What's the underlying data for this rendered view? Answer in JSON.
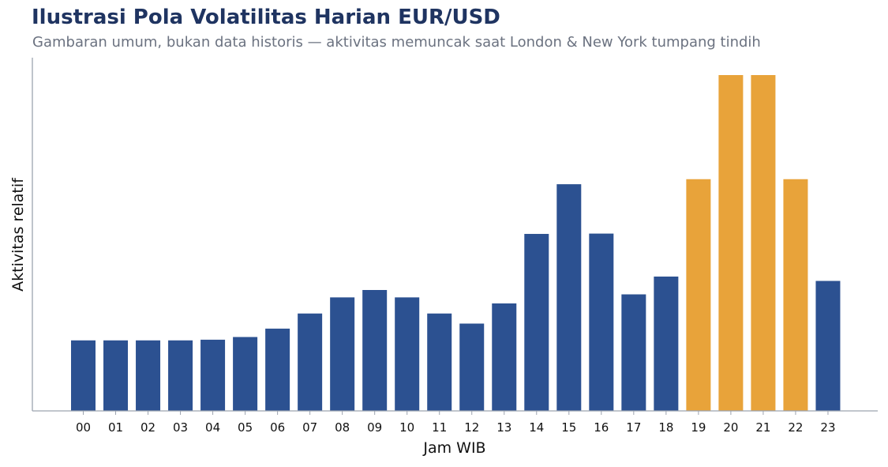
{
  "chart_data": {
    "type": "bar",
    "title": "Ilustrasi Pola Volatilitas Harian EUR/USD",
    "subtitle": "Gambaran umum, bukan data historis — aktivitas memuncak saat London & New York tumpang tindih",
    "xlabel": "Jam WIB",
    "ylabel": "Aktivitas relatif",
    "categories": [
      "00",
      "01",
      "02",
      "03",
      "04",
      "05",
      "06",
      "07",
      "08",
      "09",
      "10",
      "11",
      "12",
      "13",
      "14",
      "15",
      "16",
      "17",
      "18",
      "19",
      "20",
      "21",
      "22",
      "23"
    ],
    "values": [
      21,
      21,
      21,
      21,
      21.2,
      22,
      24.5,
      29,
      33.8,
      36,
      33.8,
      29,
      26,
      32,
      52.7,
      67.5,
      52.8,
      34.7,
      40,
      69,
      100,
      100,
      69,
      38.7
    ],
    "highlight": [
      false,
      false,
      false,
      false,
      false,
      false,
      false,
      false,
      false,
      false,
      false,
      false,
      false,
      false,
      false,
      false,
      false,
      false,
      false,
      true,
      true,
      true,
      true,
      false
    ],
    "ylim": [
      0,
      105
    ],
    "yticks_shown": false,
    "grid": false,
    "legend": "none",
    "colors": {
      "bar": "#2c5191",
      "highlight": "#e8a33a",
      "axis": "#9ca3af"
    }
  }
}
